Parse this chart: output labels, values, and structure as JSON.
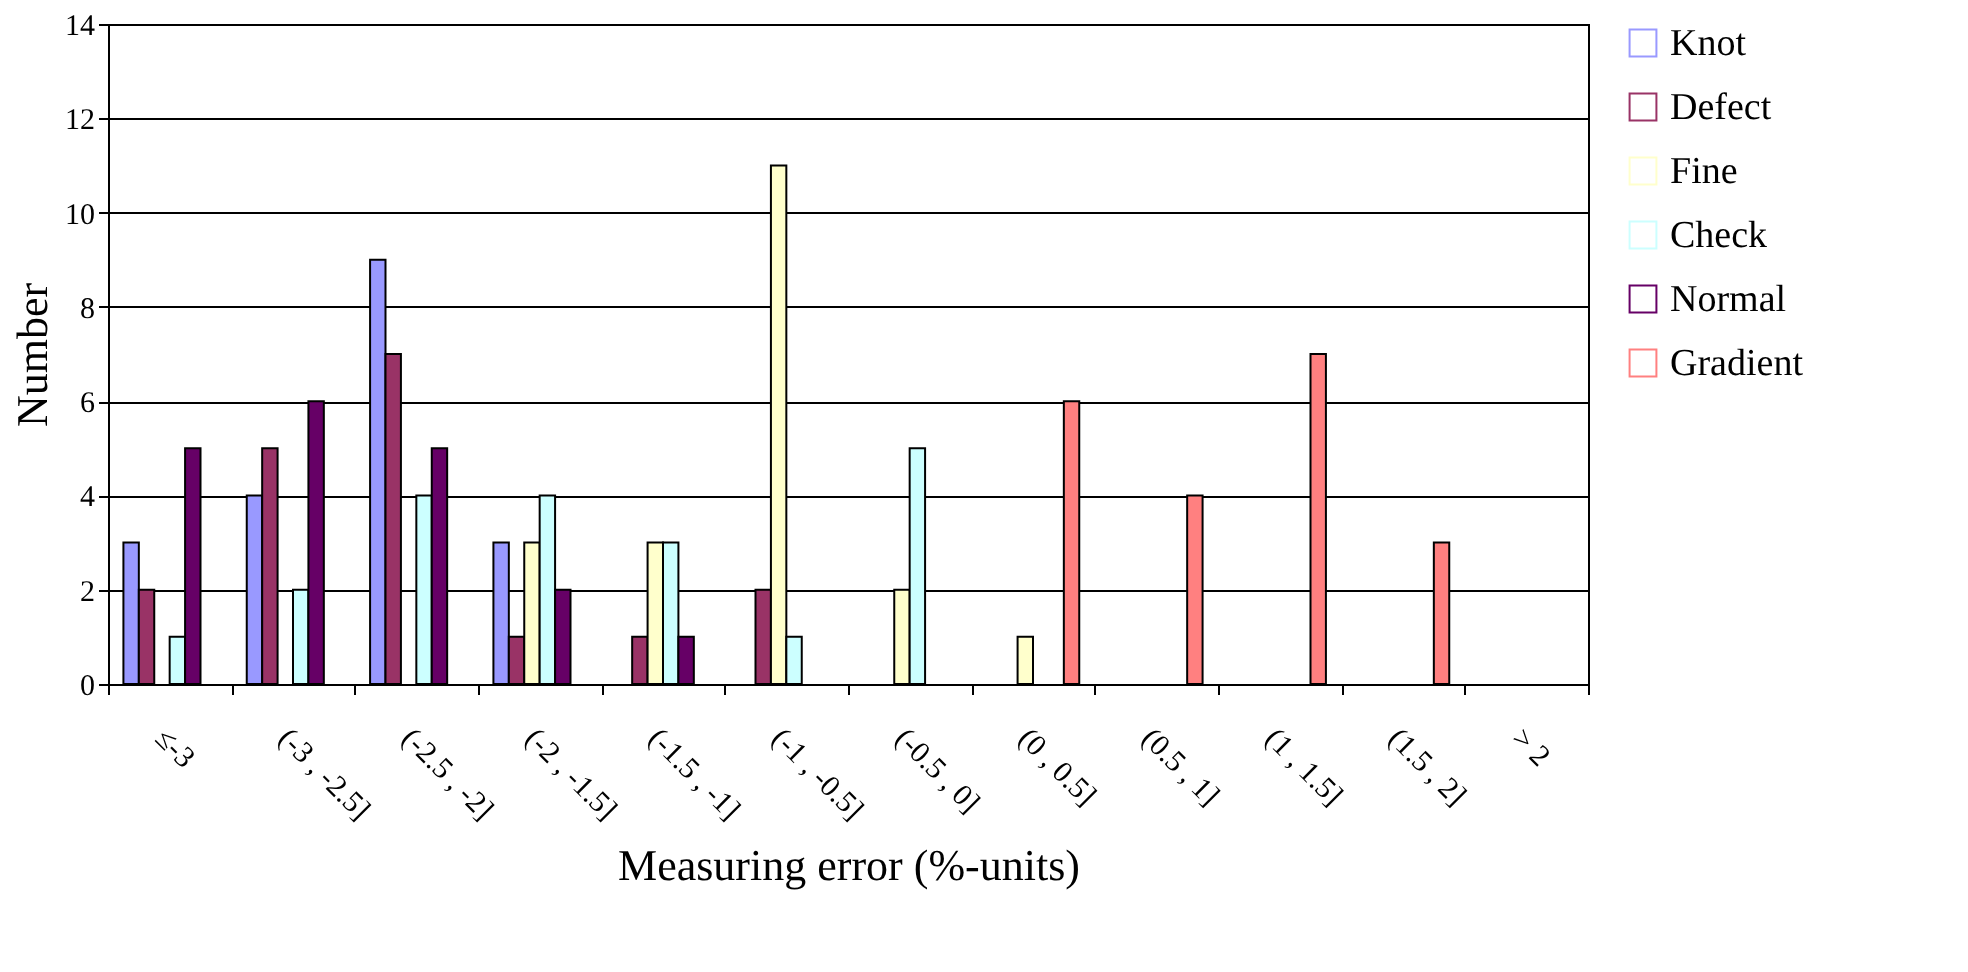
{
  "chart_data": {
    "type": "bar",
    "xlabel": "Measuring error (%-units)",
    "ylabel": "Number",
    "categories": [
      "≤-3",
      "(-3 , -2.5]",
      "(-2.5 , -2]",
      "(-2 , -1.5]",
      "(-1.5 , -1]",
      "(-1 , -0.5]",
      "(-0.5 , 0]",
      "(0 , 0.5]",
      "(0.5 , 1]",
      "(1 , 1.5]",
      "(1.5 , 2]",
      "> 2"
    ],
    "series": [
      {
        "name": "Knot",
        "color": "#9999ff",
        "values": [
          3,
          4,
          9,
          3,
          0,
          0,
          0,
          0,
          0,
          0,
          0,
          0
        ]
      },
      {
        "name": "Defect",
        "color": "#993366",
        "values": [
          2,
          5,
          7,
          1,
          1,
          2,
          0,
          0,
          0,
          0,
          0,
          0
        ]
      },
      {
        "name": "Fine",
        "color": "#ffffcc",
        "values": [
          0,
          0,
          0,
          3,
          3,
          11,
          2,
          1,
          0,
          0,
          0,
          0
        ]
      },
      {
        "name": "Check",
        "color": "#ccffff",
        "values": [
          1,
          2,
          4,
          4,
          3,
          1,
          5,
          0,
          0,
          0,
          0,
          0
        ]
      },
      {
        "name": "Normal",
        "color": "#660066",
        "values": [
          5,
          6,
          5,
          2,
          1,
          0,
          0,
          0,
          0,
          0,
          0,
          0
        ]
      },
      {
        "name": "Gradient",
        "color": "#ff8080",
        "values": [
          0,
          0,
          0,
          0,
          0,
          0,
          0,
          6,
          4,
          7,
          3,
          0
        ]
      }
    ],
    "ylim": [
      0,
      14
    ],
    "yticks": [
      0,
      2,
      4,
      6,
      8,
      10,
      12,
      14
    ],
    "grid": "y",
    "legend": "right"
  }
}
